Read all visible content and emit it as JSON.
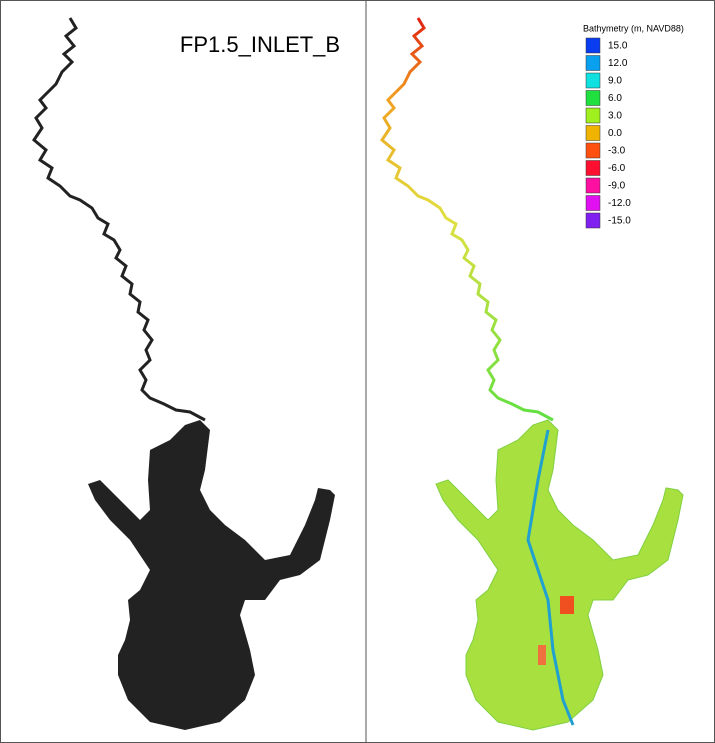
{
  "title": "FP1.5_INLET_B",
  "legend": {
    "title": "Bathymetry (m, NAVD88)",
    "items": [
      {
        "label": "15.0",
        "color": "#0a3cf0"
      },
      {
        "label": "12.0",
        "color": "#0aa0f0"
      },
      {
        "label": "9.0",
        "color": "#10e0e0"
      },
      {
        "label": "6.0",
        "color": "#20e040"
      },
      {
        "label": "3.0",
        "color": "#a0f020"
      },
      {
        "label": "0.0",
        "color": "#f0b400"
      },
      {
        "label": "-3.0",
        "color": "#ff5010"
      },
      {
        "label": "-6.0",
        "color": "#ff1030"
      },
      {
        "label": "-9.0",
        "color": "#ff10a0"
      },
      {
        "label": "-12.0",
        "color": "#e010f0"
      },
      {
        "label": "-15.0",
        "color": "#8020f0"
      }
    ]
  }
}
